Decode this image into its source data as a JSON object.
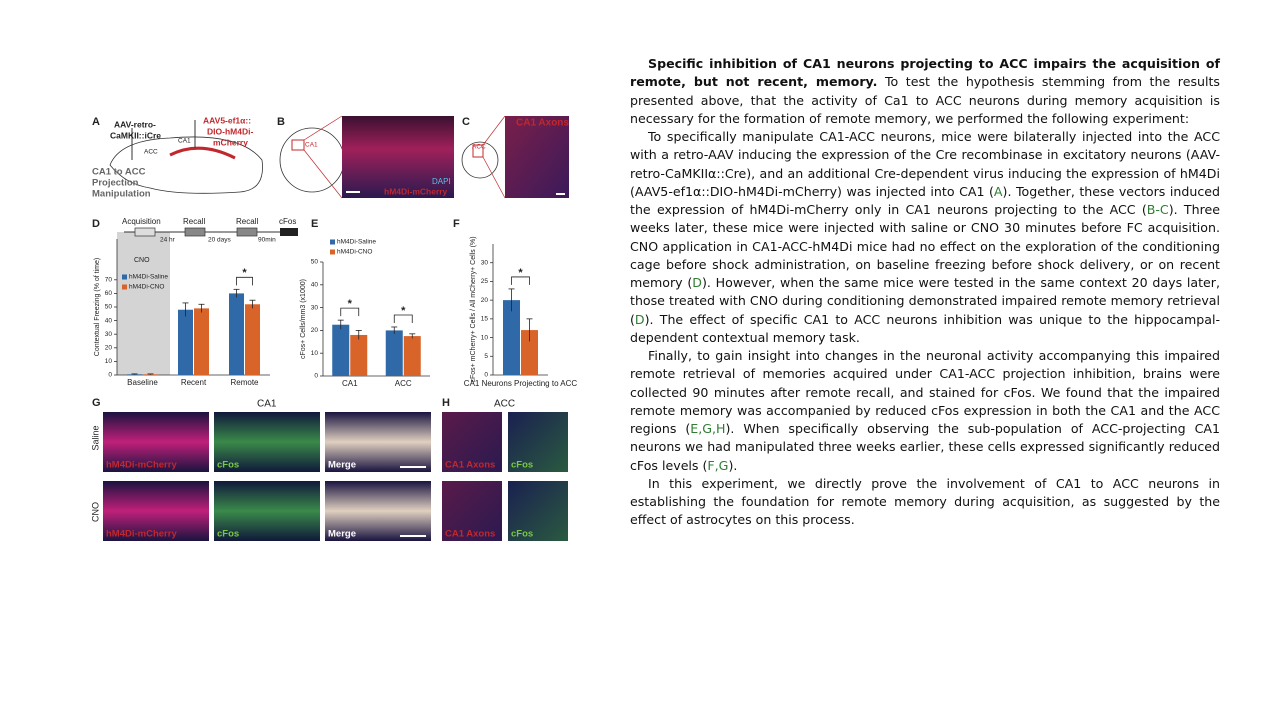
{
  "figure": {
    "texts": [
      "A",
      "AAV-retro-",
      "CaMKII::iCre",
      "AAV5-ef1α::",
      "DIO-hM4Di-",
      "mCherry",
      "ACC",
      "CA1",
      "CA1 to ACC",
      "Projection",
      "Manipulation",
      "B",
      "CA1",
      "DAPI",
      "hM4Di-mCherry",
      "C",
      "ACC",
      "CA1 Axons",
      "D",
      "Acquisition",
      "Recall",
      "Recall",
      "cFos",
      "24 hr",
      "20 days",
      "90min",
      "CNO",
      "E",
      "F",
      "G",
      "CA1",
      "H",
      "ACC",
      "Saline",
      "CNO",
      "hM4Di-mCherry",
      "cFos",
      "Merge",
      "hM4Di-mCherry",
      "cFos",
      "Merge",
      "CA1 Axons",
      "cFos",
      "CA1 Axons",
      "cFos"
    ],
    "charts": [
      {
        "type": "bar",
        "ylabel": "Contextual Freezing (% of time)",
        "categories": [
          "Baseline",
          "Recent",
          "Remote"
        ],
        "series": [
          {
            "name": "hM4Di-Saline",
            "color": "#2f69a8",
            "values": [
              0.5,
              48,
              60
            ],
            "errors": [
              0.3,
              5,
              3
            ]
          },
          {
            "name": "hM4Di-CNO",
            "color": "#d8642a",
            "values": [
              0.5,
              49,
              52
            ],
            "errors": [
              0.3,
              3,
              3
            ]
          }
        ],
        "ylim": [
          0,
          100
        ],
        "yticks": [
          0,
          10,
          20,
          30,
          40,
          50,
          60,
          70
        ],
        "legend": true,
        "annotations": [
          {
            "text": "*",
            "category": 2
          }
        ]
      },
      {
        "type": "bar",
        "ylabel": "cFos+ Cells/mm3 (x1000)",
        "categories": [
          "CA1",
          "ACC"
        ],
        "series": [
          {
            "name": "hM4Di-Saline",
            "color": "#2f69a8",
            "values": [
              22.5,
              20
            ],
            "errors": [
              2,
              1.5
            ]
          },
          {
            "name": "hM4Di-CNO",
            "color": "#d8642a",
            "values": [
              18,
              17.5
            ],
            "errors": [
              2,
              1
            ]
          }
        ],
        "ylim": [
          0,
          50
        ],
        "yticks": [
          0,
          10,
          20,
          30,
          40,
          50
        ],
        "legend": true,
        "annotations": [
          {
            "text": "*",
            "category": 0
          },
          {
            "text": "*",
            "category": 1
          }
        ]
      },
      {
        "type": "bar",
        "ylabel": "cFos+ mCherry+ Cells / All mCherry+ Cells (%)",
        "xlabel": "CA1 Neurons Projecting to ACC",
        "categories": [
          null
        ],
        "series": [
          {
            "color": "#2f69a8",
            "values": [
              20
            ],
            "errors": [
              3
            ]
          },
          {
            "color": "#d8642a",
            "values": [
              12
            ],
            "errors": [
              3
            ]
          }
        ],
        "ylim": [
          0,
          35
        ],
        "yticks": [
          0,
          5,
          10,
          15,
          20,
          25,
          30
        ],
        "legend": false,
        "annotations": [
          {
            "text": "*",
            "category": 0
          }
        ]
      }
    ]
  },
  "body": {
    "paragraphs": [
      [
        {
          "text": "Specific inhibition of CA1 neurons projecting to ACC impairs the acquisition of remote, but not recent, memory.",
          "style": "bold"
        },
        {
          "text": " To test the hypothesis stemming from the results presented above, that the activity of Ca1 to ACC neurons during memory acquisition is necessary for the formation of remote memory, we performed the following experiment:",
          "style": "plain"
        }
      ],
      [
        {
          "text": "To specifically manipulate CA1-ACC neurons, mice were bilaterally injected into the ACC with a retro-AAV inducing the expression of the Cre recombinase in excitatory neurons (AAV-retro-CaMKIIα::Cre), and an additional Cre-dependent virus inducing the expression of hM4Di (AAV5-ef1α::DIO-hM4Di-mCherry) was injected into CA1 (",
          "style": "plain"
        },
        {
          "text": "A",
          "style": "ref"
        },
        {
          "text": "). Together, these vectors induced the expression of hM4Di-mCherry only in CA1 neurons projecting to the ACC (",
          "style": "plain"
        },
        {
          "text": "B-C",
          "style": "ref"
        },
        {
          "text": "). Three weeks later, these mice were injected with saline or CNO 30 minutes before FC acquisition. CNO application in CA1-ACC-hM4Di mice had no effect on the exploration of the conditioning cage before shock administration, on baseline freezing before shock delivery, or on recent memory (",
          "style": "plain"
        },
        {
          "text": "D",
          "style": "ref"
        },
        {
          "text": "). However, when the same mice were tested in the same context 20 days later, those treated with CNO during conditioning demonstrated impaired remote memory retrieval (",
          "style": "plain"
        },
        {
          "text": "D",
          "style": "ref"
        },
        {
          "text": "). The effect of specific CA1 to ACC neurons inhibition was unique to the hippocampal-dependent contextual memory task.",
          "style": "plain"
        }
      ],
      [
        {
          "text": "Finally, to gain insight into changes in the neuronal activity accompanying this impaired remote retrieval of memories acquired under CA1-ACC projection inhibition, brains were collected 90 minutes after remote recall, and stained for cFos. We found that the impaired remote memory was accompanied by reduced cFos expression in both the CA1 and the ACC regions (",
          "style": "plain"
        },
        {
          "text": "E,G,H",
          "style": "ref"
        },
        {
          "text": "). When specifically observing the sub-population of ACC-projecting CA1 neurons we had manipulated three weeks earlier, these cells expressed significantly reduced cFos levels (",
          "style": "plain"
        },
        {
          "text": "F,G",
          "style": "ref"
        },
        {
          "text": ").",
          "style": "plain"
        }
      ],
      [
        {
          "text": "In this experiment, we directly prove the involvement of CA1 to ACC neurons in establishing the foundation for remote memory during acquisition, as suggested by the effect of astrocytes on this process.",
          "style": "plain"
        }
      ]
    ]
  }
}
